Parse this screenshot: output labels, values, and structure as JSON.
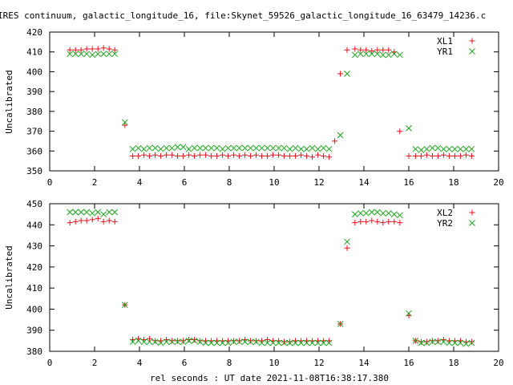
{
  "page": {
    "title": "IRES continuum, galactic_longitude_16, file:Skynet_59526_galactic_longitude_16_63479_14236.c",
    "xlabel": "rel seconds : UT date 2021-11-08T16:38:17.380"
  },
  "colors": {
    "red": "#e8101a",
    "green": "#1aa31a"
  },
  "chart_data": [
    {
      "type": "scatter",
      "ylabel": "Uncalibrated",
      "xlim": [
        0,
        20
      ],
      "ylim": [
        350,
        420
      ],
      "xticks": [
        0,
        2,
        4,
        6,
        8,
        10,
        12,
        14,
        16,
        18,
        20
      ],
      "yticks": [
        350,
        360,
        370,
        380,
        390,
        400,
        410,
        420
      ],
      "legend": "top-right",
      "series": [
        {
          "name": "XL1",
          "marker": "+",
          "color": "#e8101a",
          "x": [
            0.9,
            1.15,
            1.4,
            1.65,
            1.9,
            2.15,
            2.4,
            2.65,
            2.9,
            3.35,
            3.7,
            3.95,
            4.2,
            4.45,
            4.7,
            4.95,
            5.2,
            5.45,
            5.7,
            5.95,
            6.2,
            6.45,
            6.7,
            6.95,
            7.2,
            7.45,
            7.7,
            7.95,
            8.2,
            8.45,
            8.7,
            8.95,
            9.2,
            9.45,
            9.7,
            9.95,
            10.2,
            10.45,
            10.7,
            10.95,
            11.2,
            11.45,
            11.7,
            11.95,
            12.2,
            12.45,
            12.7,
            12.95,
            13.25,
            13.6,
            13.85,
            14.1,
            14.35,
            14.6,
            14.85,
            15.1,
            15.35,
            15.6,
            16.0,
            16.3,
            16.55,
            16.8,
            17.05,
            17.3,
            17.55,
            17.8,
            18.05,
            18.3,
            18.55,
            18.8
          ],
          "y": [
            411,
            411,
            411,
            411.5,
            411.5,
            411.5,
            412,
            411.5,
            411,
            373,
            357.5,
            357.5,
            358,
            357.5,
            358,
            357.5,
            358,
            358,
            357.5,
            357.5,
            358,
            357.5,
            358,
            358,
            357.5,
            357.5,
            358,
            357.5,
            358,
            357.5,
            358,
            357.5,
            358,
            357.5,
            357.5,
            358,
            358,
            357.5,
            357.5,
            357.5,
            358,
            357.5,
            357,
            358,
            357.5,
            357,
            365,
            399,
            411,
            411.5,
            411,
            411,
            410.5,
            411,
            411,
            411,
            410,
            370,
            357.5,
            357.5,
            357.5,
            358,
            357.5,
            357.5,
            358,
            357.5,
            357.5,
            357.5,
            358,
            357.5
          ]
        },
        {
          "name": "YR1",
          "marker": "x",
          "color": "#1aa31a",
          "x": [
            0.9,
            1.15,
            1.4,
            1.65,
            1.9,
            2.15,
            2.4,
            2.65,
            2.9,
            3.35,
            3.7,
            3.95,
            4.2,
            4.45,
            4.7,
            4.95,
            5.2,
            5.45,
            5.7,
            5.95,
            6.2,
            6.45,
            6.7,
            6.95,
            7.2,
            7.45,
            7.7,
            7.95,
            8.2,
            8.45,
            8.7,
            8.95,
            9.2,
            9.45,
            9.7,
            9.95,
            10.2,
            10.45,
            10.7,
            10.95,
            11.2,
            11.45,
            11.7,
            11.95,
            12.2,
            12.45,
            12.95,
            13.25,
            13.6,
            13.85,
            14.1,
            14.35,
            14.6,
            14.85,
            15.1,
            15.35,
            15.6,
            16.0,
            16.3,
            16.55,
            16.8,
            17.05,
            17.3,
            17.55,
            17.8,
            18.05,
            18.3,
            18.55,
            18.8
          ],
          "y": [
            409,
            409,
            409,
            409,
            408.5,
            409,
            409,
            409,
            409,
            374.5,
            361,
            361.5,
            361,
            361.5,
            361.5,
            361,
            361.5,
            361.5,
            362,
            362,
            361,
            361.5,
            361.5,
            361.5,
            361.5,
            361.5,
            361,
            361.5,
            361.5,
            361.5,
            361.5,
            361.5,
            361.5,
            361.5,
            361.5,
            361.5,
            361.5,
            361.5,
            361,
            361.5,
            361,
            361,
            361.5,
            361,
            361.5,
            361,
            368,
            399,
            408.5,
            409,
            409,
            409,
            409,
            408.5,
            408.5,
            409,
            408.5,
            371.5,
            361,
            360.5,
            361,
            361.5,
            361.5,
            361,
            361,
            361,
            361,
            361,
            361
          ]
        }
      ]
    },
    {
      "type": "scatter",
      "ylabel": "Uncalibrated",
      "xlim": [
        0,
        20
      ],
      "ylim": [
        380,
        450
      ],
      "xticks": [
        0,
        2,
        4,
        6,
        8,
        10,
        12,
        14,
        16,
        18,
        20
      ],
      "yticks": [
        380,
        390,
        400,
        410,
        420,
        430,
        440,
        450
      ],
      "legend": "top-right",
      "series": [
        {
          "name": "XL2",
          "marker": "+",
          "color": "#e8101a",
          "x": [
            0.9,
            1.15,
            1.4,
            1.65,
            1.9,
            2.15,
            2.4,
            2.65,
            2.9,
            3.35,
            3.7,
            3.95,
            4.2,
            4.45,
            4.7,
            4.95,
            5.2,
            5.45,
            5.7,
            5.95,
            6.2,
            6.45,
            6.7,
            6.95,
            7.2,
            7.45,
            7.7,
            7.95,
            8.2,
            8.45,
            8.7,
            8.95,
            9.2,
            9.45,
            9.7,
            9.95,
            10.2,
            10.45,
            10.7,
            10.95,
            11.2,
            11.45,
            11.7,
            11.95,
            12.2,
            12.45,
            12.95,
            13.25,
            13.6,
            13.85,
            14.1,
            14.35,
            14.6,
            14.85,
            15.1,
            15.35,
            15.6,
            16.0,
            16.3,
            16.55,
            16.8,
            17.05,
            17.3,
            17.55,
            17.8,
            18.05,
            18.3,
            18.55,
            18.8
          ],
          "y": [
            441,
            441.5,
            442,
            442,
            442.5,
            443,
            441.5,
            442,
            441.5,
            402,
            385.5,
            386,
            385.5,
            386,
            385,
            385,
            385.5,
            385,
            385,
            385,
            385.5,
            385.5,
            385,
            385,
            385,
            385,
            385,
            385,
            385,
            385,
            385.5,
            385,
            385,
            385,
            385.5,
            385,
            385,
            384.5,
            384.5,
            385,
            385,
            385,
            385,
            385,
            385,
            385,
            393,
            429,
            441,
            441.5,
            441.5,
            442,
            441.5,
            441,
            441.5,
            441.5,
            441,
            397,
            385,
            384.5,
            384.5,
            385,
            385,
            385.5,
            385,
            385,
            385,
            384.5,
            384.5
          ]
        },
        {
          "name": "YR2",
          "marker": "x",
          "color": "#1aa31a",
          "x": [
            0.9,
            1.15,
            1.4,
            1.65,
            1.9,
            2.15,
            2.4,
            2.65,
            2.9,
            3.35,
            3.7,
            3.95,
            4.2,
            4.45,
            4.7,
            4.95,
            5.2,
            5.45,
            5.7,
            5.95,
            6.2,
            6.45,
            6.7,
            6.95,
            7.2,
            7.45,
            7.7,
            7.95,
            8.2,
            8.45,
            8.7,
            8.95,
            9.2,
            9.45,
            9.7,
            9.95,
            10.2,
            10.45,
            10.7,
            10.95,
            11.2,
            11.45,
            11.7,
            11.95,
            12.2,
            12.45,
            12.95,
            13.25,
            13.6,
            13.85,
            14.1,
            14.35,
            14.6,
            14.85,
            15.1,
            15.35,
            15.6,
            16.0,
            16.3,
            16.55,
            16.8,
            17.05,
            17.3,
            17.55,
            17.8,
            18.05,
            18.3,
            18.55,
            18.8
          ],
          "y": [
            446,
            446,
            446,
            446,
            445.5,
            446,
            445,
            446,
            446,
            402,
            384.5,
            385,
            384.5,
            384.5,
            384.5,
            384,
            384.5,
            384.5,
            384.5,
            384.5,
            385,
            385,
            384.5,
            384,
            384,
            384,
            384,
            384,
            384.5,
            384.5,
            384.5,
            384.5,
            384.5,
            384,
            384,
            384,
            384,
            384,
            384,
            384,
            384,
            384,
            384,
            384,
            384,
            384,
            393,
            432,
            445,
            445.5,
            445.5,
            446,
            446,
            445.5,
            445.5,
            445,
            444.5,
            398,
            385,
            384,
            384,
            384.5,
            384.5,
            384.5,
            384,
            384,
            384,
            383.5,
            384
          ]
        }
      ]
    }
  ]
}
